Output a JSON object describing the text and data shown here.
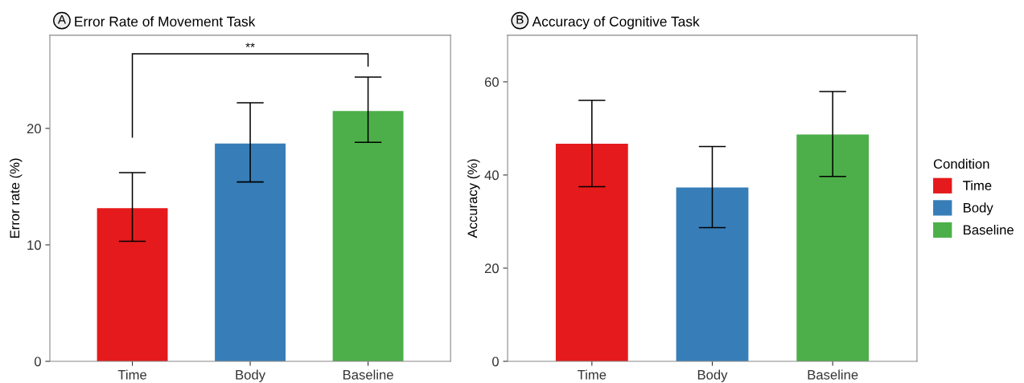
{
  "chart_data": [
    {
      "type": "bar",
      "title": "Error Rate of Movement Task",
      "ylabel": "Error rate (%)",
      "categories": [
        "Time",
        "Body",
        "Baseline"
      ],
      "series": [
        {
          "color": "#e41a1c",
          "values": [
            13.15,
            null,
            null
          ],
          "errors": [
            [
              10.3,
              16.2
            ],
            null,
            null
          ]
        },
        {
          "color": "#377eb8",
          "values": [
            null,
            18.7,
            null
          ],
          "errors": [
            null,
            [
              15.4,
              22.2
            ],
            null
          ]
        },
        {
          "color": "#4daf4a",
          "values": [
            null,
            null,
            21.5
          ],
          "errors": [
            null,
            null,
            [
              18.8,
              24.4
            ]
          ]
        }
      ],
      "ylim": [
        0,
        28
      ],
      "yticks": [
        0,
        10,
        20
      ],
      "annotations": [
        "A",
        "**"
      ]
    },
    {
      "type": "bar",
      "title": "Accuracy of Cognitive Task",
      "ylabel": "Accuracy (%)",
      "categories": [
        "Time",
        "Body",
        "Baseline"
      ],
      "series": [
        {
          "name": "Time",
          "color": "#e41a1c",
          "values": [
            46.7,
            null,
            null
          ],
          "errors": [
            [
              37.5,
              56.0
            ],
            null,
            null
          ]
        },
        {
          "name": "Body",
          "color": "#377eb8",
          "values": [
            null,
            37.3,
            null
          ],
          "errors": [
            null,
            [
              28.7,
              46.1
            ],
            null
          ]
        },
        {
          "name": "Baseline",
          "color": "#4daf4a",
          "values": [
            null,
            null,
            48.7
          ],
          "errors": [
            null,
            null,
            [
              39.7,
              57.9
            ]
          ]
        }
      ],
      "ylim": [
        0,
        70
      ],
      "yticks": [
        0,
        20,
        40,
        60
      ],
      "legend": "right",
      "legend_title": "Condition",
      "annotations": [
        "B"
      ]
    }
  ]
}
